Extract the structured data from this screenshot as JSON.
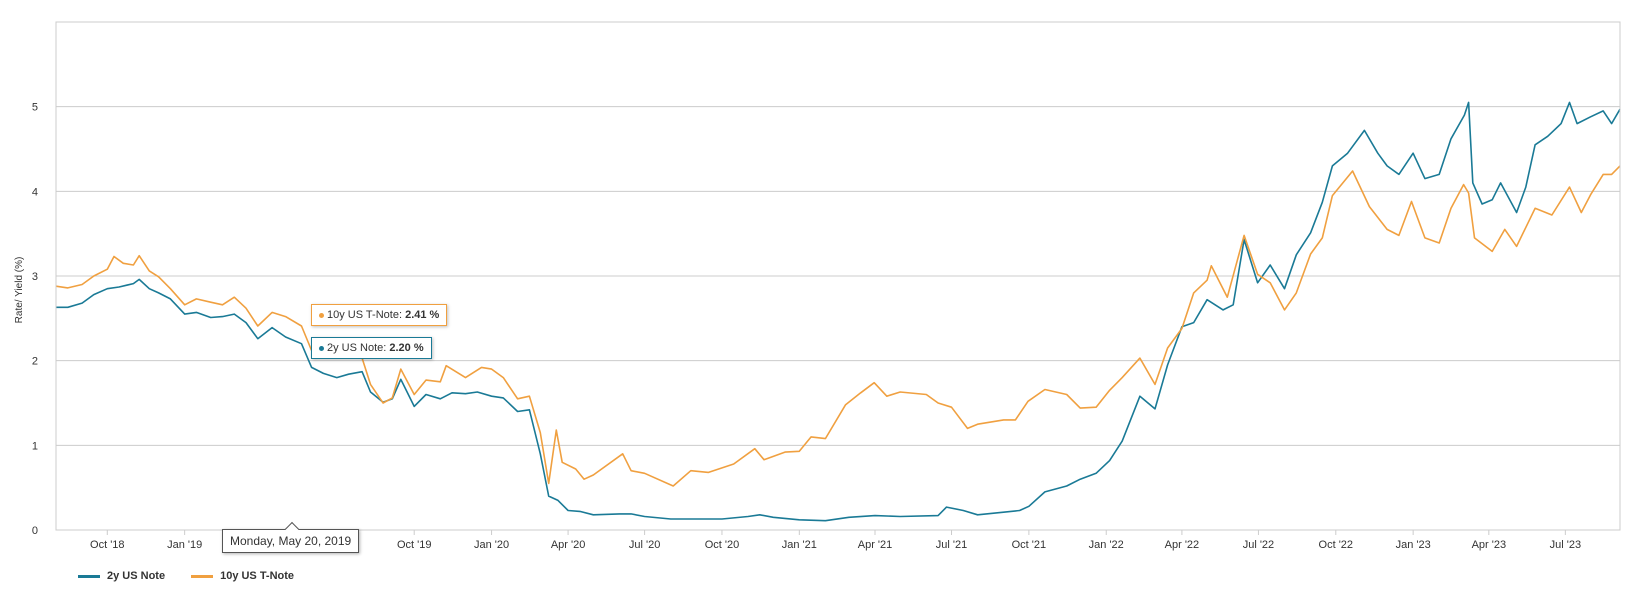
{
  "chart_data": {
    "type": "line",
    "title": "",
    "xlabel": "",
    "ylabel": "Rate/ Yield (%)",
    "ylim": [
      0,
      6
    ],
    "yticks": [
      0,
      1,
      2,
      3,
      4,
      5
    ],
    "xlim": [
      "2018-08-01",
      "2023-09-04"
    ],
    "xticks": [
      {
        "date": "2018-10-01",
        "label": "Oct '18"
      },
      {
        "date": "2019-01-01",
        "label": "Jan '19"
      },
      {
        "date": "2019-10-01",
        "label": "Oct '19"
      },
      {
        "date": "2020-01-01",
        "label": "Jan '20"
      },
      {
        "date": "2020-04-01",
        "label": "Apr '20"
      },
      {
        "date": "2020-07-01",
        "label": "Jul '20"
      },
      {
        "date": "2020-10-01",
        "label": "Oct '20"
      },
      {
        "date": "2021-01-01",
        "label": "Jan '21"
      },
      {
        "date": "2021-04-01",
        "label": "Apr '21"
      },
      {
        "date": "2021-07-01",
        "label": "Jul '21"
      },
      {
        "date": "2021-10-01",
        "label": "Oct '21"
      },
      {
        "date": "2022-01-01",
        "label": "Jan '22"
      },
      {
        "date": "2022-04-01",
        "label": "Apr '22"
      },
      {
        "date": "2022-07-01",
        "label": "Jul '22"
      },
      {
        "date": "2022-10-01",
        "label": "Oct '22"
      },
      {
        "date": "2023-01-01",
        "label": "Jan '23"
      },
      {
        "date": "2023-04-01",
        "label": "Apr '23"
      },
      {
        "date": "2023-07-01",
        "label": "Jul '23"
      }
    ],
    "grid": true,
    "legend_position": "bottom-left",
    "series": [
      {
        "name": "2y US Note",
        "color": "#1a7a96",
        "points": [
          [
            "2018-08-01",
            2.63
          ],
          [
            "2018-08-15",
            2.63
          ],
          [
            "2018-09-01",
            2.68
          ],
          [
            "2018-09-15",
            2.78
          ],
          [
            "2018-10-01",
            2.85
          ],
          [
            "2018-10-15",
            2.87
          ],
          [
            "2018-11-01",
            2.91
          ],
          [
            "2018-11-08",
            2.96
          ],
          [
            "2018-11-20",
            2.85
          ],
          [
            "2018-12-01",
            2.8
          ],
          [
            "2018-12-15",
            2.73
          ],
          [
            "2019-01-01",
            2.55
          ],
          [
            "2019-01-15",
            2.57
          ],
          [
            "2019-02-01",
            2.51
          ],
          [
            "2019-02-15",
            2.52
          ],
          [
            "2019-03-01",
            2.55
          ],
          [
            "2019-03-15",
            2.45
          ],
          [
            "2019-03-29",
            2.26
          ],
          [
            "2019-04-15",
            2.39
          ],
          [
            "2019-05-01",
            2.28
          ],
          [
            "2019-05-20",
            2.2
          ],
          [
            "2019-06-01",
            1.92
          ],
          [
            "2019-06-15",
            1.85
          ],
          [
            "2019-07-01",
            1.8
          ],
          [
            "2019-07-15",
            1.84
          ],
          [
            "2019-07-31",
            1.87
          ],
          [
            "2019-08-10",
            1.63
          ],
          [
            "2019-08-25",
            1.51
          ],
          [
            "2019-09-05",
            1.55
          ],
          [
            "2019-09-15",
            1.78
          ],
          [
            "2019-10-01",
            1.46
          ],
          [
            "2019-10-15",
            1.6
          ],
          [
            "2019-11-01",
            1.55
          ],
          [
            "2019-11-15",
            1.62
          ],
          [
            "2019-12-01",
            1.61
          ],
          [
            "2019-12-15",
            1.63
          ],
          [
            "2020-01-01",
            1.58
          ],
          [
            "2020-01-15",
            1.56
          ],
          [
            "2020-02-01",
            1.4
          ],
          [
            "2020-02-15",
            1.42
          ],
          [
            "2020-02-28",
            0.9
          ],
          [
            "2020-03-09",
            0.4
          ],
          [
            "2020-03-20",
            0.35
          ],
          [
            "2020-04-01",
            0.23
          ],
          [
            "2020-04-15",
            0.22
          ],
          [
            "2020-05-01",
            0.18
          ],
          [
            "2020-06-01",
            0.19
          ],
          [
            "2020-06-15",
            0.19
          ],
          [
            "2020-07-01",
            0.16
          ],
          [
            "2020-08-01",
            0.13
          ],
          [
            "2020-09-01",
            0.13
          ],
          [
            "2020-10-01",
            0.13
          ],
          [
            "2020-11-01",
            0.16
          ],
          [
            "2020-11-15",
            0.18
          ],
          [
            "2020-12-01",
            0.15
          ],
          [
            "2021-01-01",
            0.12
          ],
          [
            "2021-02-01",
            0.11
          ],
          [
            "2021-03-01",
            0.15
          ],
          [
            "2021-04-01",
            0.17
          ],
          [
            "2021-05-01",
            0.16
          ],
          [
            "2021-06-15",
            0.17
          ],
          [
            "2021-06-25",
            0.27
          ],
          [
            "2021-07-15",
            0.23
          ],
          [
            "2021-08-01",
            0.18
          ],
          [
            "2021-09-01",
            0.21
          ],
          [
            "2021-09-20",
            0.23
          ],
          [
            "2021-10-01",
            0.28
          ],
          [
            "2021-10-20",
            0.45
          ],
          [
            "2021-11-15",
            0.52
          ],
          [
            "2021-12-01",
            0.6
          ],
          [
            "2021-12-20",
            0.67
          ],
          [
            "2022-01-05",
            0.82
          ],
          [
            "2022-01-20",
            1.05
          ],
          [
            "2022-02-10",
            1.58
          ],
          [
            "2022-02-28",
            1.43
          ],
          [
            "2022-03-15",
            1.95
          ],
          [
            "2022-04-01",
            2.4
          ],
          [
            "2022-04-15",
            2.45
          ],
          [
            "2022-05-01",
            2.72
          ],
          [
            "2022-05-20",
            2.6
          ],
          [
            "2022-06-01",
            2.66
          ],
          [
            "2022-06-14",
            3.43
          ],
          [
            "2022-06-30",
            2.92
          ],
          [
            "2022-07-15",
            3.13
          ],
          [
            "2022-08-01",
            2.85
          ],
          [
            "2022-08-15",
            3.25
          ],
          [
            "2022-09-01",
            3.51
          ],
          [
            "2022-09-15",
            3.87
          ],
          [
            "2022-09-27",
            4.3
          ],
          [
            "2022-10-15",
            4.45
          ],
          [
            "2022-11-04",
            4.72
          ],
          [
            "2022-11-20",
            4.45
          ],
          [
            "2022-12-01",
            4.3
          ],
          [
            "2022-12-15",
            4.2
          ],
          [
            "2023-01-01",
            4.45
          ],
          [
            "2023-01-15",
            4.15
          ],
          [
            "2023-02-01",
            4.2
          ],
          [
            "2023-02-15",
            4.62
          ],
          [
            "2023-03-03",
            4.9
          ],
          [
            "2023-03-08",
            5.05
          ],
          [
            "2023-03-13",
            4.1
          ],
          [
            "2023-03-24",
            3.85
          ],
          [
            "2023-04-05",
            3.9
          ],
          [
            "2023-04-15",
            4.1
          ],
          [
            "2023-05-04",
            3.75
          ],
          [
            "2023-05-15",
            4.05
          ],
          [
            "2023-05-26",
            4.55
          ],
          [
            "2023-06-10",
            4.65
          ],
          [
            "2023-06-26",
            4.8
          ],
          [
            "2023-07-06",
            5.05
          ],
          [
            "2023-07-15",
            4.8
          ],
          [
            "2023-07-31",
            4.88
          ],
          [
            "2023-08-15",
            4.95
          ],
          [
            "2023-08-25",
            4.8
          ],
          [
            "2023-09-04",
            4.97
          ]
        ]
      },
      {
        "name": "10y US T-Note",
        "color": "#f0a040",
        "points": [
          [
            "2018-08-01",
            2.88
          ],
          [
            "2018-08-15",
            2.86
          ],
          [
            "2018-09-01",
            2.9
          ],
          [
            "2018-09-15",
            3.0
          ],
          [
            "2018-10-01",
            3.08
          ],
          [
            "2018-10-09",
            3.23
          ],
          [
            "2018-10-20",
            3.15
          ],
          [
            "2018-11-01",
            3.13
          ],
          [
            "2018-11-08",
            3.24
          ],
          [
            "2018-11-20",
            3.06
          ],
          [
            "2018-12-01",
            2.99
          ],
          [
            "2018-12-15",
            2.85
          ],
          [
            "2019-01-01",
            2.66
          ],
          [
            "2019-01-15",
            2.73
          ],
          [
            "2019-02-01",
            2.69
          ],
          [
            "2019-02-15",
            2.66
          ],
          [
            "2019-03-01",
            2.75
          ],
          [
            "2019-03-15",
            2.62
          ],
          [
            "2019-03-29",
            2.41
          ],
          [
            "2019-04-15",
            2.57
          ],
          [
            "2019-05-01",
            2.52
          ],
          [
            "2019-05-20",
            2.41
          ],
          [
            "2019-06-01",
            2.12
          ],
          [
            "2019-06-15",
            2.05
          ],
          [
            "2019-07-01",
            2.03
          ],
          [
            "2019-07-15",
            2.08
          ],
          [
            "2019-07-31",
            2.03
          ],
          [
            "2019-08-10",
            1.72
          ],
          [
            "2019-08-25",
            1.5
          ],
          [
            "2019-09-05",
            1.56
          ],
          [
            "2019-09-15",
            1.9
          ],
          [
            "2019-10-01",
            1.6
          ],
          [
            "2019-10-15",
            1.77
          ],
          [
            "2019-11-01",
            1.75
          ],
          [
            "2019-11-08",
            1.94
          ],
          [
            "2019-12-01",
            1.8
          ],
          [
            "2019-12-20",
            1.92
          ],
          [
            "2020-01-01",
            1.9
          ],
          [
            "2020-01-15",
            1.8
          ],
          [
            "2020-02-01",
            1.55
          ],
          [
            "2020-02-15",
            1.58
          ],
          [
            "2020-02-28",
            1.15
          ],
          [
            "2020-03-09",
            0.55
          ],
          [
            "2020-03-18",
            1.18
          ],
          [
            "2020-03-25",
            0.8
          ],
          [
            "2020-04-10",
            0.72
          ],
          [
            "2020-04-20",
            0.6
          ],
          [
            "2020-05-01",
            0.65
          ],
          [
            "2020-06-05",
            0.9
          ],
          [
            "2020-06-15",
            0.7
          ],
          [
            "2020-07-01",
            0.67
          ],
          [
            "2020-08-04",
            0.52
          ],
          [
            "2020-08-25",
            0.7
          ],
          [
            "2020-09-15",
            0.68
          ],
          [
            "2020-10-15",
            0.78
          ],
          [
            "2020-11-09",
            0.96
          ],
          [
            "2020-11-20",
            0.83
          ],
          [
            "2020-12-15",
            0.92
          ],
          [
            "2021-01-01",
            0.93
          ],
          [
            "2021-01-15",
            1.1
          ],
          [
            "2021-02-01",
            1.08
          ],
          [
            "2021-02-25",
            1.48
          ],
          [
            "2021-03-15",
            1.62
          ],
          [
            "2021-03-31",
            1.74
          ],
          [
            "2021-04-15",
            1.58
          ],
          [
            "2021-05-01",
            1.63
          ],
          [
            "2021-06-01",
            1.6
          ],
          [
            "2021-06-15",
            1.5
          ],
          [
            "2021-07-01",
            1.45
          ],
          [
            "2021-07-20",
            1.2
          ],
          [
            "2021-08-01",
            1.25
          ],
          [
            "2021-09-01",
            1.3
          ],
          [
            "2021-09-15",
            1.3
          ],
          [
            "2021-09-30",
            1.52
          ],
          [
            "2021-10-20",
            1.66
          ],
          [
            "2021-11-15",
            1.6
          ],
          [
            "2021-12-01",
            1.44
          ],
          [
            "2021-12-20",
            1.45
          ],
          [
            "2022-01-05",
            1.65
          ],
          [
            "2022-01-20",
            1.8
          ],
          [
            "2022-02-10",
            2.03
          ],
          [
            "2022-02-28",
            1.72
          ],
          [
            "2022-03-15",
            2.15
          ],
          [
            "2022-04-01",
            2.38
          ],
          [
            "2022-04-15",
            2.8
          ],
          [
            "2022-05-01",
            2.95
          ],
          [
            "2022-05-06",
            3.12
          ],
          [
            "2022-05-25",
            2.75
          ],
          [
            "2022-06-14",
            3.48
          ],
          [
            "2022-06-30",
            3.02
          ],
          [
            "2022-07-15",
            2.92
          ],
          [
            "2022-08-01",
            2.6
          ],
          [
            "2022-08-15",
            2.8
          ],
          [
            "2022-09-01",
            3.26
          ],
          [
            "2022-09-15",
            3.45
          ],
          [
            "2022-09-27",
            3.95
          ],
          [
            "2022-10-21",
            4.24
          ],
          [
            "2022-11-10",
            3.82
          ],
          [
            "2022-12-01",
            3.55
          ],
          [
            "2022-12-15",
            3.48
          ],
          [
            "2022-12-30",
            3.88
          ],
          [
            "2023-01-15",
            3.45
          ],
          [
            "2023-02-01",
            3.39
          ],
          [
            "2023-02-15",
            3.8
          ],
          [
            "2023-03-02",
            4.08
          ],
          [
            "2023-03-08",
            3.98
          ],
          [
            "2023-03-15",
            3.45
          ],
          [
            "2023-04-05",
            3.29
          ],
          [
            "2023-04-20",
            3.55
          ],
          [
            "2023-05-04",
            3.35
          ],
          [
            "2023-05-26",
            3.8
          ],
          [
            "2023-06-15",
            3.72
          ],
          [
            "2023-07-06",
            4.05
          ],
          [
            "2023-07-20",
            3.75
          ],
          [
            "2023-07-31",
            3.96
          ],
          [
            "2023-08-15",
            4.2
          ],
          [
            "2023-08-25",
            4.2
          ],
          [
            "2023-09-04",
            4.3
          ]
        ]
      }
    ]
  },
  "hover": {
    "date": "Monday, May 20, 2019",
    "series": [
      {
        "name": "10y US T-Note",
        "sep": ": ",
        "value": "2.41 %",
        "color": "#f0a040"
      },
      {
        "name": "2y US Note",
        "sep": ": ",
        "value": "2.20 %",
        "color": "#1a7a96"
      }
    ]
  },
  "legend": {
    "items": [
      {
        "label": "2y US Note",
        "color": "#1a7a96"
      },
      {
        "label": "10y US T-Note",
        "color": "#f0a040"
      }
    ]
  }
}
